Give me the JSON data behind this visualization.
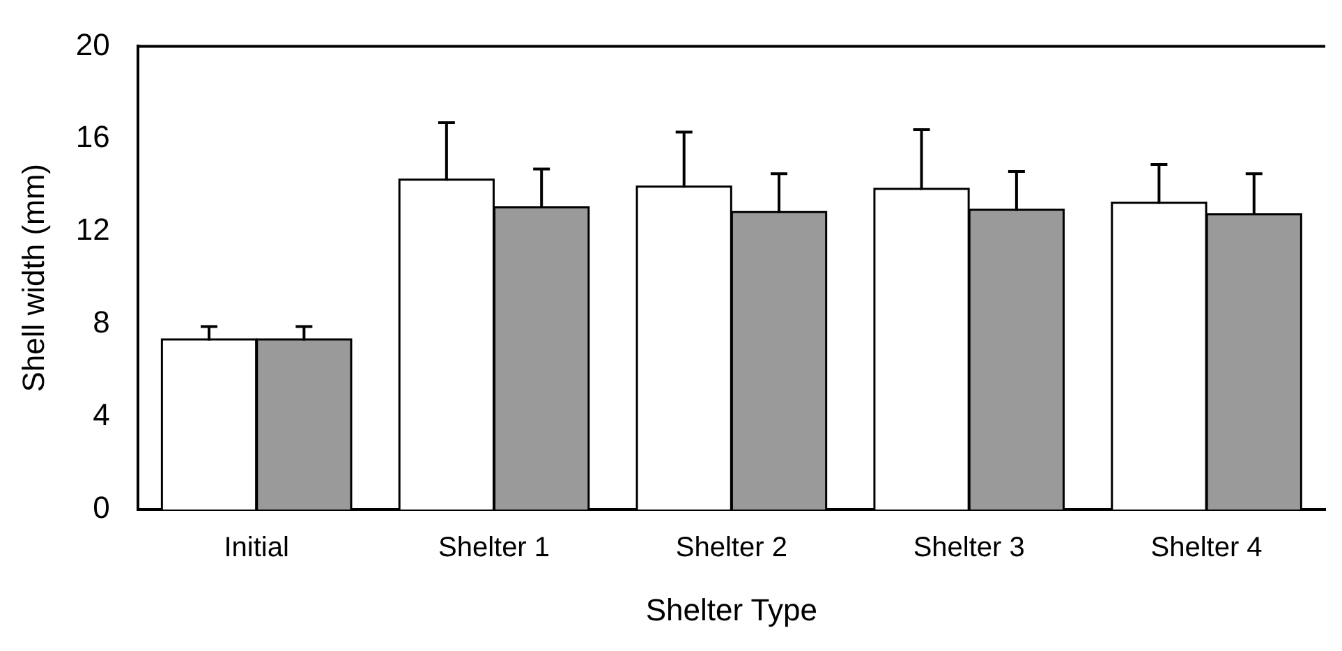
{
  "chart_data": {
    "type": "bar",
    "xlabel": "Shelter Type",
    "ylabel": "Shell width (mm)",
    "categories": [
      "Initial",
      "Shelter 1",
      "Shelter 2",
      "Shelter 3",
      "Shelter 4"
    ],
    "series": [
      {
        "color": "#ffffff",
        "values": [
          7.3,
          14.2,
          13.9,
          13.8,
          13.2
        ],
        "errors": [
          [
            7.3,
            7.9
          ],
          [
            14.2,
            16.7
          ],
          [
            13.9,
            16.3
          ],
          [
            13.8,
            16.4
          ],
          [
            13.2,
            14.9
          ]
        ]
      },
      {
        "color": "#9a9a9a",
        "values": [
          7.3,
          13.0,
          12.8,
          12.9,
          12.7
        ],
        "errors": [
          [
            7.3,
            7.9
          ],
          [
            13.0,
            14.7
          ],
          [
            12.8,
            14.5
          ],
          [
            12.9,
            14.6
          ],
          [
            12.7,
            14.5
          ]
        ]
      }
    ],
    "ylim": [
      0,
      20
    ],
    "yticks": [
      0,
      4,
      8,
      12,
      16,
      20
    ],
    "grid": false,
    "legend": false
  }
}
